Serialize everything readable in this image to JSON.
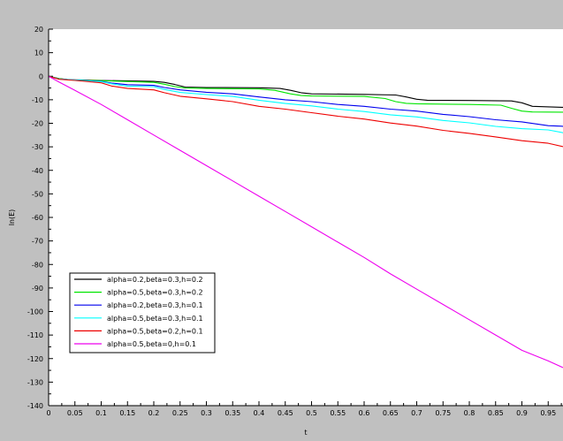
{
  "chart_data": {
    "type": "line",
    "title": "",
    "xlabel": "t",
    "ylabel": "ln(E)",
    "xlim": [
      0,
      0.99
    ],
    "ylim": [
      -140,
      20
    ],
    "x_ticks": [
      "0",
      "0.05",
      "0.1",
      "0.15",
      "0.2",
      "0.25",
      "0.3",
      "0.35",
      "0.4",
      "0.45",
      "0.5",
      "0.55",
      "0.6",
      "0.65",
      "0.7",
      "0.75",
      "0.8",
      "0.85",
      "0.9",
      "0.95"
    ],
    "y_ticks": [
      "20",
      "10",
      "0",
      "-10",
      "-20",
      "-30",
      "-40",
      "-50",
      "-60",
      "-70",
      "-80",
      "-90",
      "-100",
      "-110",
      "-120",
      "-130",
      "-140"
    ],
    "legend_position": "bottom-left",
    "series": [
      {
        "name": "alpha=0.2,beta=0.3,h=0.2",
        "color": "#000000",
        "x": [
          0,
          0.02,
          0.04,
          0.1,
          0.2,
          0.22,
          0.24,
          0.26,
          0.3,
          0.4,
          0.44,
          0.46,
          0.48,
          0.5,
          0.6,
          0.66,
          0.68,
          0.7,
          0.72,
          0.8,
          0.88,
          0.9,
          0.92,
          0.99
        ],
        "y": [
          0,
          -1,
          -1.5,
          -1.8,
          -2.2,
          -2.6,
          -3.5,
          -4.6,
          -4.8,
          -4.9,
          -5.2,
          -6,
          -7,
          -7.5,
          -7.7,
          -8,
          -8.8,
          -9.8,
          -10.2,
          -10.3,
          -10.5,
          -11.3,
          -12.8,
          -13.3
        ]
      },
      {
        "name": "alpha=0.5,beta=0.3,h=0.2",
        "color": "#00e600",
        "x": [
          0,
          0.02,
          0.04,
          0.1,
          0.2,
          0.22,
          0.24,
          0.26,
          0.3,
          0.4,
          0.43,
          0.46,
          0.48,
          0.5,
          0.6,
          0.64,
          0.66,
          0.68,
          0.7,
          0.8,
          0.86,
          0.88,
          0.9,
          0.92,
          0.99
        ],
        "y": [
          0,
          -1,
          -1.6,
          -1.9,
          -2.6,
          -3.4,
          -4.4,
          -5,
          -5.2,
          -5.4,
          -6,
          -7.5,
          -8.2,
          -8.4,
          -8.6,
          -9.5,
          -10.8,
          -11.5,
          -11.7,
          -12,
          -12.3,
          -13.6,
          -14.8,
          -15.2,
          -15.3
        ]
      },
      {
        "name": "alpha=0.2,beta=0.3,h=0.1",
        "color": "#0000ee",
        "x": [
          0,
          0.02,
          0.05,
          0.1,
          0.12,
          0.15,
          0.2,
          0.22,
          0.25,
          0.3,
          0.35,
          0.4,
          0.45,
          0.5,
          0.55,
          0.6,
          0.65,
          0.7,
          0.75,
          0.8,
          0.85,
          0.9,
          0.95,
          0.99
        ],
        "y": [
          0,
          -1.2,
          -1.6,
          -2.2,
          -2.9,
          -3.6,
          -3.9,
          -4.8,
          -5.8,
          -6.8,
          -7.5,
          -8.8,
          -10,
          -10.8,
          -12,
          -12.8,
          -14,
          -14.8,
          -16.2,
          -17.2,
          -18.5,
          -19.4,
          -21,
          -21.4
        ]
      },
      {
        "name": "alpha=0.5,beta=0.3,h=0.1",
        "color": "#00ffff",
        "x": [
          0,
          0.02,
          0.05,
          0.1,
          0.12,
          0.15,
          0.2,
          0.22,
          0.25,
          0.3,
          0.35,
          0.4,
          0.45,
          0.5,
          0.55,
          0.6,
          0.65,
          0.7,
          0.75,
          0.8,
          0.85,
          0.9,
          0.95,
          0.99
        ],
        "y": [
          0,
          -1.2,
          -1.6,
          -2.3,
          -3.2,
          -4.2,
          -4.4,
          -5.6,
          -6.9,
          -7.8,
          -8.6,
          -10.2,
          -11.6,
          -12.6,
          -14,
          -15,
          -16.4,
          -17.3,
          -18.8,
          -19.8,
          -21.3,
          -22.3,
          -22.8,
          -24.5
        ]
      },
      {
        "name": "alpha=0.5,beta=0.2,h=0.1",
        "color": "#ee0000",
        "x": [
          0,
          0.02,
          0.05,
          0.1,
          0.12,
          0.15,
          0.2,
          0.22,
          0.25,
          0.3,
          0.35,
          0.4,
          0.45,
          0.5,
          0.55,
          0.6,
          0.65,
          0.7,
          0.75,
          0.8,
          0.85,
          0.9,
          0.95,
          0.99
        ],
        "y": [
          0,
          -1.3,
          -1.8,
          -2.8,
          -4.2,
          -5.2,
          -5.8,
          -7,
          -8.5,
          -9.6,
          -10.8,
          -12.8,
          -14,
          -15.5,
          -17,
          -18.2,
          -19.9,
          -21.2,
          -23,
          -24.3,
          -25.8,
          -27.4,
          -28.5,
          -30.5
        ]
      },
      {
        "name": "alpha=0.5,beta=0,h=0.1",
        "color": "#ee00ee",
        "x": [
          0,
          0.02,
          0.05,
          0.1,
          0.15,
          0.2,
          0.25,
          0.3,
          0.35,
          0.4,
          0.45,
          0.5,
          0.55,
          0.6,
          0.65,
          0.7,
          0.75,
          0.8,
          0.85,
          0.9,
          0.95,
          0.99
        ],
        "y": [
          0,
          -2.5,
          -6,
          -12,
          -18.5,
          -25,
          -31.5,
          -38,
          -44.5,
          -51,
          -57.5,
          -64,
          -70.5,
          -77,
          -84,
          -90.5,
          -97,
          -103.5,
          -110,
          -116.5,
          -121,
          -125
        ]
      }
    ]
  }
}
